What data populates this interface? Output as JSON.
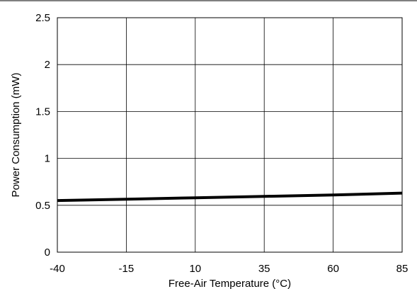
{
  "chart_data": {
    "type": "line",
    "xlabel": "Free-Air Temperature (°C)",
    "ylabel": "Power Consumption (mW)",
    "xlim": [
      -40,
      85
    ],
    "ylim": [
      0,
      2.5
    ],
    "x_ticks": [
      "-40",
      "-15",
      "10",
      "35",
      "60",
      "85"
    ],
    "y_ticks": [
      "0",
      "0.5",
      "1",
      "1.5",
      "2",
      "2.5"
    ],
    "x_tick_values": [
      -40,
      -15,
      10,
      35,
      60,
      85
    ],
    "y_tick_values": [
      0,
      0.5,
      1,
      1.5,
      2,
      2.5
    ],
    "grid": true,
    "series": [
      {
        "x": [
          -40,
          -15,
          10,
          35,
          60,
          85
        ],
        "y": [
          0.55,
          0.565,
          0.58,
          0.595,
          0.61,
          0.63
        ],
        "color": "#000000"
      }
    ]
  }
}
